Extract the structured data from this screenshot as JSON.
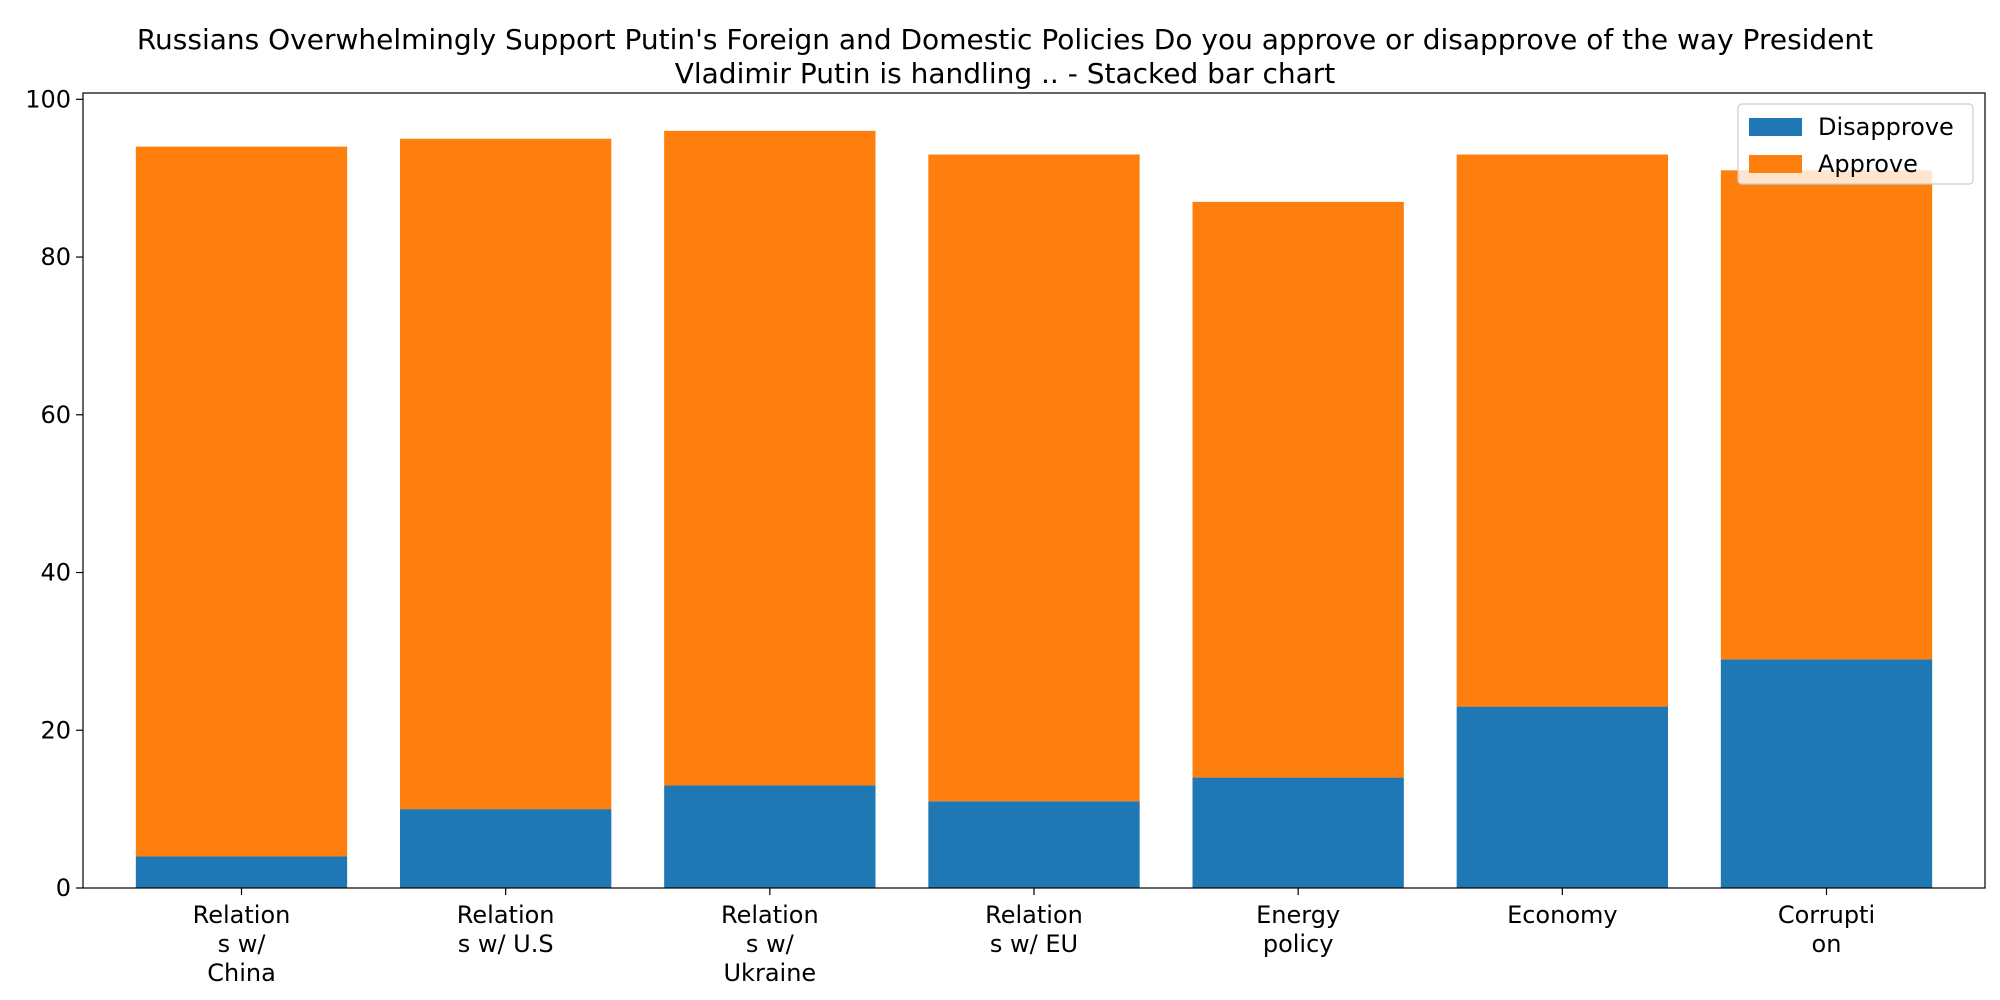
{
  "chart_data": {
    "type": "bar",
    "stacked": true,
    "title": "Russians Overwhelmingly Support Putin's Foreign and Domestic Policies Do you approve or disapprove of the way President Vladimir Putin is handling ..  - Stacked bar chart",
    "title_lines": [
      "Russians Overwhelmingly Support Putin's Foreign and Domestic Policies Do you approve or disapprove of the way President",
      "Vladimir Putin is handling ..  - Stacked bar chart"
    ],
    "xlabel": "",
    "ylabel": "",
    "categories": [
      "Relations w/ China",
      "Relations w/ U.S",
      "Relations w/ Ukraine",
      "Relations w/ EU",
      "Energy policy",
      "Economy",
      "Corruption"
    ],
    "category_label_lines": [
      [
        "Relation",
        "s w/",
        "China"
      ],
      [
        "Relation",
        "s w/ U.S"
      ],
      [
        "Relation",
        "s w/",
        "Ukraine"
      ],
      [
        "Relation",
        "s w/ EU"
      ],
      [
        "Energy",
        "policy"
      ],
      [
        "Economy"
      ],
      [
        "Corrupti",
        "on"
      ]
    ],
    "series": [
      {
        "name": "Disapprove",
        "color": "#1f77b4",
        "values": [
          4,
          10,
          13,
          11,
          14,
          23,
          29
        ]
      },
      {
        "name": "Approve",
        "color": "#ff7f0e",
        "values": [
          90,
          85,
          83,
          82,
          73,
          70,
          62
        ]
      }
    ],
    "ylim": [
      0,
      100.8
    ],
    "yticks": [
      0,
      20,
      40,
      60,
      80,
      100
    ],
    "grid": false,
    "legend_position": "top-right"
  }
}
